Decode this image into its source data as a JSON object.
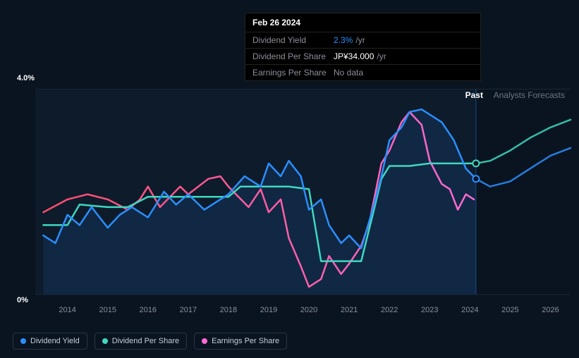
{
  "tooltip": {
    "date": "Feb 26 2024",
    "rows": [
      {
        "label": "Dividend Yield",
        "value": "2.3%",
        "unit": "/yr",
        "value_color": "#2b8fff"
      },
      {
        "label": "Dividend Per Share",
        "value": "JP¥34.000",
        "unit": "/yr",
        "value_color": "#ffffff"
      },
      {
        "label": "Earnings Per Share",
        "value": null
      }
    ]
  },
  "chart": {
    "ylim": [
      0,
      4
    ],
    "y_top_label": "4.0%",
    "y_bottom_label": "0%",
    "xlim": [
      2013.2,
      2026.5
    ],
    "x_ticks": [
      2014,
      2015,
      2016,
      2017,
      2018,
      2019,
      2020,
      2021,
      2022,
      2023,
      2024,
      2025,
      2026
    ],
    "background_color": "#0a1420",
    "grid_color": "#1a2635",
    "past_future_split": 2024.15,
    "tabs": {
      "past": "Past",
      "forecast": "Analysts Forecasts"
    },
    "cursor_x": 2024.15,
    "markers": [
      {
        "series": "dps",
        "x": 2024.15,
        "y": 2.55,
        "color": "#3fd8c0"
      },
      {
        "series": "dy",
        "x": 2024.15,
        "y": 2.25,
        "color": "#2b8fff"
      }
    ],
    "series": {
      "dy": {
        "label": "Dividend Yield",
        "color": "#2b8fff",
        "area_color": "rgba(43,143,255,0.12)",
        "data": [
          [
            2013.4,
            1.15
          ],
          [
            2013.7,
            1.0
          ],
          [
            2014,
            1.55
          ],
          [
            2014.3,
            1.35
          ],
          [
            2014.6,
            1.7
          ],
          [
            2015,
            1.3
          ],
          [
            2015.3,
            1.55
          ],
          [
            2015.6,
            1.7
          ],
          [
            2016,
            1.5
          ],
          [
            2016.4,
            2.0
          ],
          [
            2016.7,
            1.75
          ],
          [
            2017,
            1.95
          ],
          [
            2017.4,
            1.65
          ],
          [
            2017.7,
            1.8
          ],
          [
            2018,
            1.95
          ],
          [
            2018.4,
            2.3
          ],
          [
            2018.8,
            2.1
          ],
          [
            2019,
            2.55
          ],
          [
            2019.3,
            2.3
          ],
          [
            2019.5,
            2.6
          ],
          [
            2019.8,
            2.3
          ],
          [
            2020,
            1.65
          ],
          [
            2020.3,
            1.85
          ],
          [
            2020.5,
            1.35
          ],
          [
            2020.8,
            1.0
          ],
          [
            2021,
            1.15
          ],
          [
            2021.3,
            0.9
          ],
          [
            2021.6,
            1.7
          ],
          [
            2021.8,
            2.3
          ],
          [
            2022,
            3.0
          ],
          [
            2022.3,
            3.25
          ],
          [
            2022.5,
            3.55
          ],
          [
            2022.8,
            3.6
          ],
          [
            2023,
            3.5
          ],
          [
            2023.3,
            3.35
          ],
          [
            2023.6,
            3.0
          ],
          [
            2023.9,
            2.45
          ],
          [
            2024.15,
            2.25
          ]
        ],
        "forecast": [
          [
            2024.15,
            2.25
          ],
          [
            2024.5,
            2.1
          ],
          [
            2025,
            2.2
          ],
          [
            2025.5,
            2.45
          ],
          [
            2026,
            2.7
          ],
          [
            2026.5,
            2.85
          ]
        ]
      },
      "dps": {
        "label": "Dividend Per Share",
        "color": "#3fd8c0",
        "data": [
          [
            2013.4,
            1.35
          ],
          [
            2014,
            1.35
          ],
          [
            2014.3,
            1.75
          ],
          [
            2015,
            1.7
          ],
          [
            2015.5,
            1.7
          ],
          [
            2016,
            1.9
          ],
          [
            2016.5,
            1.9
          ],
          [
            2017,
            1.9
          ],
          [
            2017.5,
            1.9
          ],
          [
            2018,
            1.9
          ],
          [
            2018.3,
            2.1
          ],
          [
            2019,
            2.1
          ],
          [
            2019.5,
            2.1
          ],
          [
            2020,
            2.05
          ],
          [
            2020.3,
            0.65
          ],
          [
            2020.8,
            0.65
          ],
          [
            2021,
            0.65
          ],
          [
            2021.3,
            0.65
          ],
          [
            2021.6,
            1.6
          ],
          [
            2021.8,
            2.25
          ],
          [
            2022,
            2.5
          ],
          [
            2022.5,
            2.5
          ],
          [
            2023,
            2.55
          ],
          [
            2023.5,
            2.55
          ],
          [
            2024.15,
            2.55
          ]
        ],
        "forecast": [
          [
            2024.15,
            2.55
          ],
          [
            2024.5,
            2.6
          ],
          [
            2025,
            2.8
          ],
          [
            2025.5,
            3.05
          ],
          [
            2026,
            3.25
          ],
          [
            2026.5,
            3.4
          ]
        ]
      },
      "eps": {
        "label": "Earnings Per Share",
        "color_start": "#ff4d6a",
        "color_end": "#ff6ad5",
        "data": [
          [
            2013.4,
            1.6
          ],
          [
            2014,
            1.85
          ],
          [
            2014.5,
            1.95
          ],
          [
            2015,
            1.85
          ],
          [
            2015.5,
            1.65
          ],
          [
            2015.8,
            1.85
          ],
          [
            2016,
            2.1
          ],
          [
            2016.3,
            1.7
          ],
          [
            2016.8,
            2.1
          ],
          [
            2017,
            1.95
          ],
          [
            2017.5,
            2.25
          ],
          [
            2017.8,
            2.3
          ],
          [
            2018,
            2.1
          ],
          [
            2018.5,
            1.7
          ],
          [
            2018.8,
            2.05
          ],
          [
            2019,
            1.6
          ],
          [
            2019.3,
            1.85
          ],
          [
            2019.5,
            1.1
          ],
          [
            2019.8,
            0.55
          ],
          [
            2020,
            0.15
          ],
          [
            2020.3,
            0.3
          ],
          [
            2020.5,
            0.75
          ],
          [
            2020.8,
            0.4
          ],
          [
            2021,
            0.6
          ],
          [
            2021.3,
            0.95
          ],
          [
            2021.5,
            1.4
          ],
          [
            2021.8,
            2.55
          ],
          [
            2022,
            2.8
          ],
          [
            2022.3,
            3.35
          ],
          [
            2022.5,
            3.55
          ],
          [
            2022.8,
            3.3
          ],
          [
            2023,
            2.6
          ],
          [
            2023.3,
            2.15
          ],
          [
            2023.5,
            2.05
          ],
          [
            2023.7,
            1.65
          ],
          [
            2023.9,
            1.95
          ],
          [
            2024.1,
            1.85
          ]
        ]
      }
    }
  },
  "legend": [
    {
      "label": "Dividend Yield",
      "color": "#2b8fff"
    },
    {
      "label": "Dividend Per Share",
      "color": "#3fd8c0"
    },
    {
      "label": "Earnings Per Share",
      "color": "#ff6ad5"
    }
  ]
}
